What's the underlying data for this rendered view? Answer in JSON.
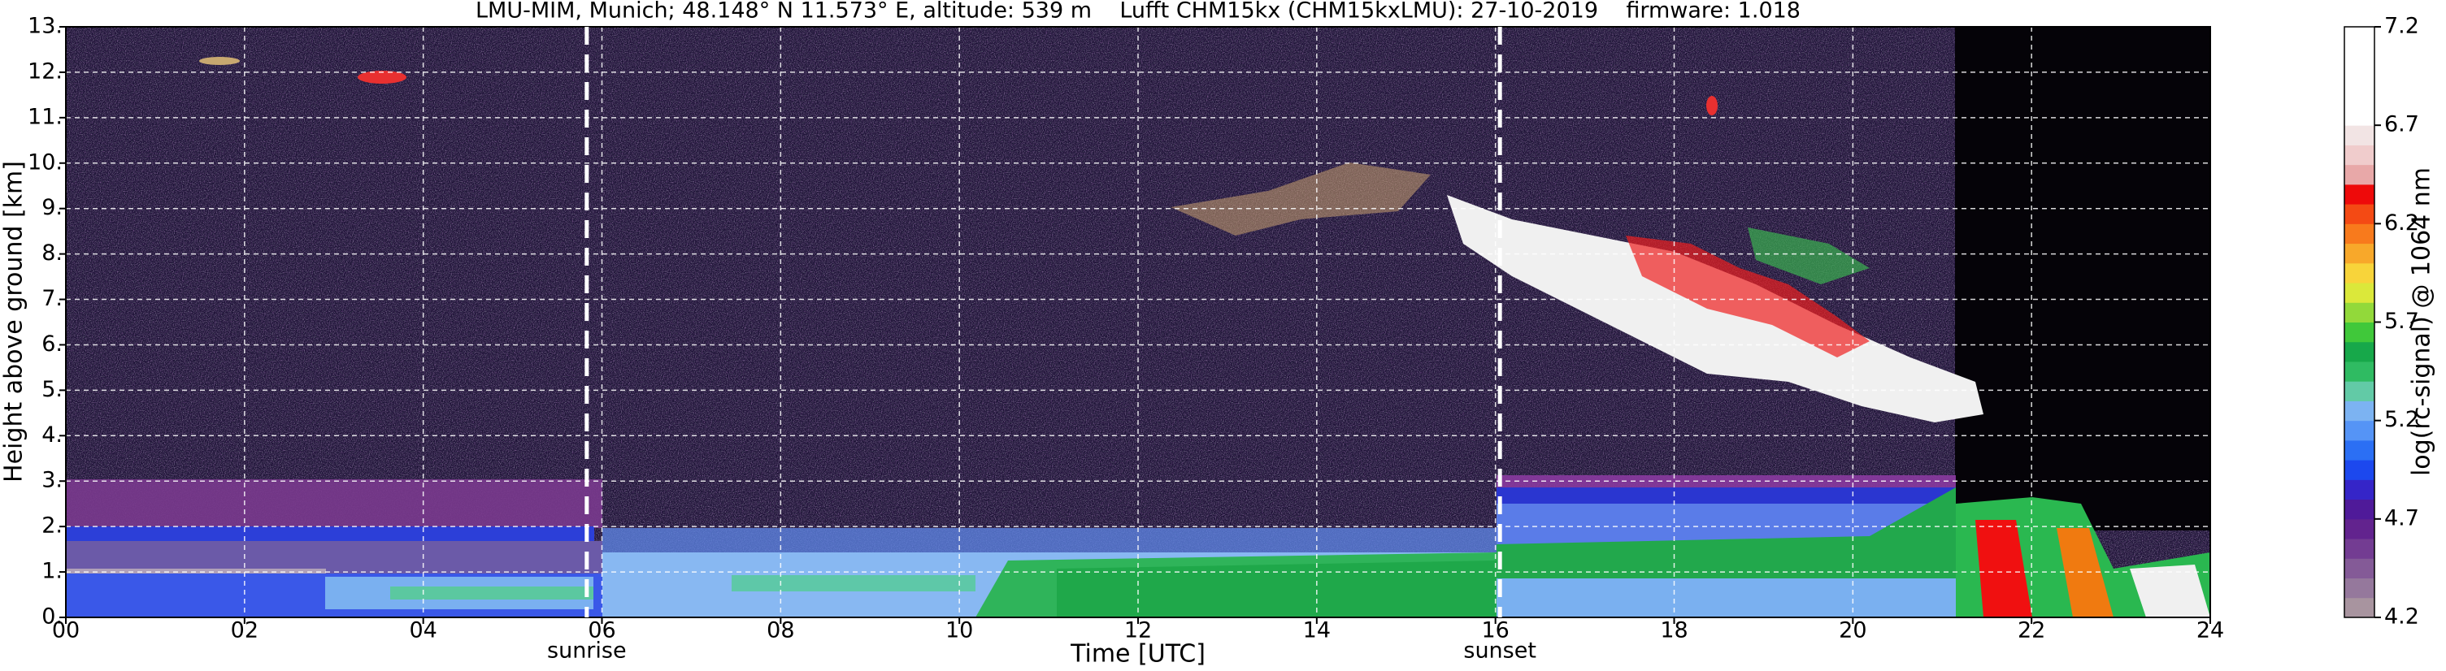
{
  "chart_data": {
    "type": "heatmap",
    "title": "LMU-MIM, Munich; 48.148° N 11.573° E, altitude: 539 m    Lufft CHM15kx (CHM15kxLMU): 27-10-2019    firmware: 1.018",
    "x_label": "Time [UTC]",
    "y_label": "Height above ground [km]",
    "xlim": [
      0,
      24
    ],
    "xticks": [
      {
        "value": 0,
        "label": "00"
      },
      {
        "value": 2,
        "label": "02"
      },
      {
        "value": 4,
        "label": "04"
      },
      {
        "value": 6,
        "label": "06"
      },
      {
        "value": 8,
        "label": "08"
      },
      10,
      12,
      14,
      16,
      18,
      20,
      22,
      24
    ],
    "ylim": [
      0,
      13
    ],
    "yticks": [
      {
        "value": 0,
        "label": "0."
      },
      {
        "value": 1,
        "label": "1."
      },
      {
        "value": 2,
        "label": "2."
      },
      {
        "value": 3,
        "label": "3."
      },
      {
        "value": 4,
        "label": "4."
      },
      {
        "value": 5,
        "label": "5."
      },
      {
        "value": 6,
        "label": "6."
      },
      {
        "value": 7,
        "label": "7."
      },
      {
        "value": 8,
        "label": "8."
      },
      {
        "value": 9,
        "label": "9."
      },
      {
        "value": 10,
        "label": "10."
      },
      {
        "value": 11,
        "label": "11."
      },
      {
        "value": 12,
        "label": "12."
      },
      {
        "value": 13,
        "label": "13."
      }
    ],
    "grid": true,
    "annotations": [
      {
        "text": "sunrise",
        "x": 5.83
      },
      {
        "text": "sunset",
        "x": 16.05
      }
    ],
    "colorbar": {
      "label": "log(rc-signal) @ 1064 nm",
      "lim": [
        4.2,
        7.2
      ],
      "ticks": [
        4.2,
        4.7,
        5.2,
        5.7,
        6.2,
        6.7,
        7.2
      ],
      "colors": [
        "#a8949f",
        "#95789c",
        "#845a97",
        "#733c92",
        "#62238e",
        "#4f1a99",
        "#3525c8",
        "#1c48ee",
        "#2b6ff4",
        "#5594f6",
        "#7cb3f2",
        "#62caa6",
        "#2fbb62",
        "#17a84a",
        "#40c83a",
        "#92d93a",
        "#dbe83a",
        "#f8d43a",
        "#f8a82a",
        "#f87a1c",
        "#f44a14",
        "#ee0a0a",
        "#e8a8a8",
        "#f0cccc",
        "#f2e4e4",
        "#ffffff",
        "#ffffff",
        "#ffffff",
        "#ffffff",
        "#ffffff"
      ]
    }
  }
}
